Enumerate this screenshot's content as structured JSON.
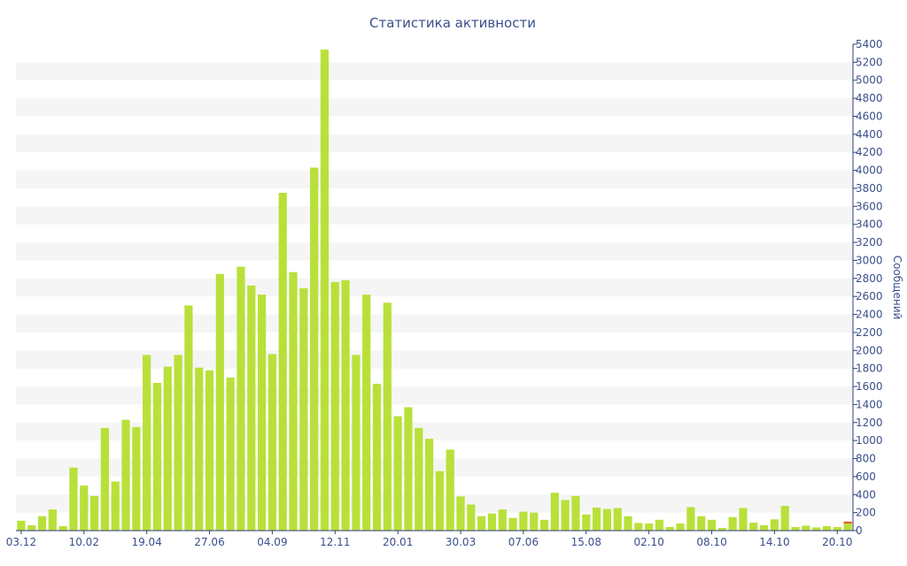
{
  "chart_data": {
    "type": "bar",
    "title": "Статистика активности",
    "xlabel": "",
    "ylabel": "Сообщений",
    "y_axis_position": "right",
    "ylim": [
      0,
      5400
    ],
    "y_tick_step": 200,
    "grid": "alternating horizontal bands",
    "colors": {
      "bar": "#b9e03a",
      "bar_highlight": "#e05a3a",
      "text": "#3a4f8c",
      "band": "#f5f5f5",
      "axis": "#2d3e73"
    },
    "x_tick_labels": [
      {
        "index": 0,
        "label": "03.12"
      },
      {
        "index": 6,
        "label": "10.02"
      },
      {
        "index": 12,
        "label": "19.04"
      },
      {
        "index": 18,
        "label": "27.06"
      },
      {
        "index": 24,
        "label": "04.09"
      },
      {
        "index": 30,
        "label": "12.11"
      },
      {
        "index": 36,
        "label": "20.01"
      },
      {
        "index": 42,
        "label": "30.03"
      },
      {
        "index": 48,
        "label": "07.06"
      },
      {
        "index": 54,
        "label": "15.08"
      },
      {
        "index": 60,
        "label": "02.10"
      },
      {
        "index": 66,
        "label": "08.10"
      },
      {
        "index": 72,
        "label": "14.10"
      },
      {
        "index": 78,
        "label": "20.10"
      }
    ],
    "values": [
      110,
      60,
      160,
      235,
      50,
      700,
      500,
      385,
      1140,
      545,
      1230,
      1150,
      1950,
      1640,
      1820,
      1950,
      2500,
      1810,
      1780,
      2850,
      1700,
      2930,
      2720,
      2620,
      1960,
      3750,
      2870,
      2690,
      4030,
      5340,
      2760,
      2780,
      1950,
      2620,
      1630,
      2530,
      1270,
      1370,
      1140,
      1020,
      660,
      900,
      380,
      290,
      160,
      190,
      235,
      140,
      210,
      200,
      120,
      420,
      340,
      385,
      180,
      255,
      240,
      250,
      160,
      85,
      80,
      120,
      40,
      80,
      260,
      160,
      120,
      30,
      150,
      250,
      90,
      60,
      125,
      275,
      40,
      55,
      35,
      50,
      40,
      100
    ],
    "highlight_last_bar_top": 20
  }
}
